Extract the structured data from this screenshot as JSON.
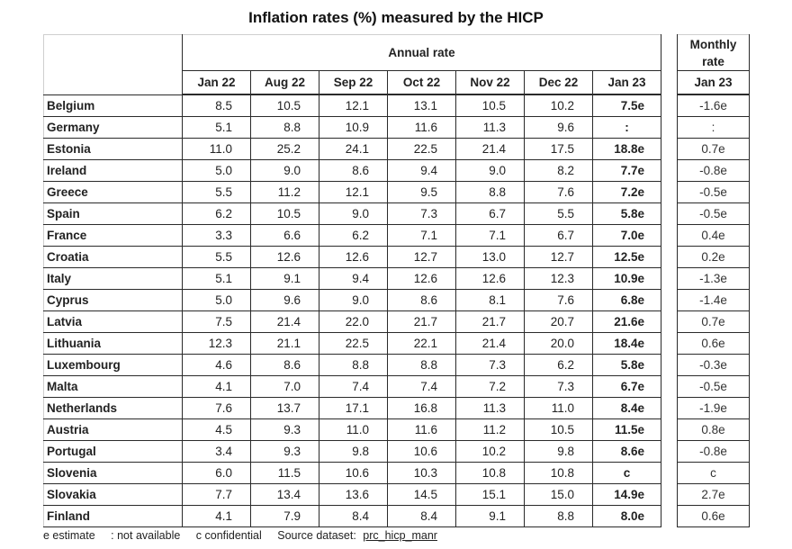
{
  "title": "Inflation rates (%) measured by the HICP",
  "headers": {
    "annual_rate": "Annual rate",
    "monthly_rate": "Monthly rate",
    "annual_months": [
      "Jan 22",
      "Aug 22",
      "Sep 22",
      "Oct 22",
      "Nov 22",
      "Dec 22",
      "Jan 23"
    ],
    "monthly_month": "Jan 23"
  },
  "rows": [
    {
      "country": "Belgium",
      "annual": [
        "8.5",
        "10.5",
        "12.1",
        "13.1",
        "10.5",
        "10.2",
        "7.5e"
      ],
      "monthly": "-1.6e"
    },
    {
      "country": "Germany",
      "annual": [
        "5.1",
        "8.8",
        "10.9",
        "11.6",
        "11.3",
        "9.6",
        ":"
      ],
      "monthly": ":"
    },
    {
      "country": "Estonia",
      "annual": [
        "11.0",
        "25.2",
        "24.1",
        "22.5",
        "21.4",
        "17.5",
        "18.8e"
      ],
      "monthly": "0.7e"
    },
    {
      "country": "Ireland",
      "annual": [
        "5.0",
        "9.0",
        "8.6",
        "9.4",
        "9.0",
        "8.2",
        "7.7e"
      ],
      "monthly": "-0.8e"
    },
    {
      "country": "Greece",
      "annual": [
        "5.5",
        "11.2",
        "12.1",
        "9.5",
        "8.8",
        "7.6",
        "7.2e"
      ],
      "monthly": "-0.5e"
    },
    {
      "country": "Spain",
      "annual": [
        "6.2",
        "10.5",
        "9.0",
        "7.3",
        "6.7",
        "5.5",
        "5.8e"
      ],
      "monthly": "-0.5e"
    },
    {
      "country": "France",
      "annual": [
        "3.3",
        "6.6",
        "6.2",
        "7.1",
        "7.1",
        "6.7",
        "7.0e"
      ],
      "monthly": "0.4e"
    },
    {
      "country": "Croatia",
      "annual": [
        "5.5",
        "12.6",
        "12.6",
        "12.7",
        "13.0",
        "12.7",
        "12.5e"
      ],
      "monthly": "0.2e"
    },
    {
      "country": "Italy",
      "annual": [
        "5.1",
        "9.1",
        "9.4",
        "12.6",
        "12.6",
        "12.3",
        "10.9e"
      ],
      "monthly": "-1.3e"
    },
    {
      "country": "Cyprus",
      "annual": [
        "5.0",
        "9.6",
        "9.0",
        "8.6",
        "8.1",
        "7.6",
        "6.8e"
      ],
      "monthly": "-1.4e"
    },
    {
      "country": "Latvia",
      "annual": [
        "7.5",
        "21.4",
        "22.0",
        "21.7",
        "21.7",
        "20.7",
        "21.6e"
      ],
      "monthly": "0.7e"
    },
    {
      "country": "Lithuania",
      "annual": [
        "12.3",
        "21.1",
        "22.5",
        "22.1",
        "21.4",
        "20.0",
        "18.4e"
      ],
      "monthly": "0.6e"
    },
    {
      "country": "Luxembourg",
      "annual": [
        "4.6",
        "8.6",
        "8.8",
        "8.8",
        "7.3",
        "6.2",
        "5.8e"
      ],
      "monthly": "-0.3e"
    },
    {
      "country": "Malta",
      "annual": [
        "4.1",
        "7.0",
        "7.4",
        "7.4",
        "7.2",
        "7.3",
        "6.7e"
      ],
      "monthly": "-0.5e"
    },
    {
      "country": "Netherlands",
      "annual": [
        "7.6",
        "13.7",
        "17.1",
        "16.8",
        "11.3",
        "11.0",
        "8.4e"
      ],
      "monthly": "-1.9e"
    },
    {
      "country": "Austria",
      "annual": [
        "4.5",
        "9.3",
        "11.0",
        "11.6",
        "11.2",
        "10.5",
        "11.5e"
      ],
      "monthly": "0.8e"
    },
    {
      "country": "Portugal",
      "annual": [
        "3.4",
        "9.3",
        "9.8",
        "10.6",
        "10.2",
        "9.8",
        "8.6e"
      ],
      "monthly": "-0.8e"
    },
    {
      "country": "Slovenia",
      "annual": [
        "6.0",
        "11.5",
        "10.6",
        "10.3",
        "10.8",
        "10.8",
        "c"
      ],
      "monthly": "c"
    },
    {
      "country": "Slovakia",
      "annual": [
        "7.7",
        "13.4",
        "13.6",
        "14.5",
        "15.1",
        "15.0",
        "14.9e"
      ],
      "monthly": "2.7e"
    },
    {
      "country": "Finland",
      "annual": [
        "4.1",
        "7.9",
        "8.4",
        "8.4",
        "9.1",
        "8.8",
        "8.0e"
      ],
      "monthly": "0.6e"
    }
  ],
  "footer": {
    "estimate": "e estimate",
    "not_available": ": not available",
    "confidential": "c confidential",
    "source_label": "Source dataset:",
    "source_link": "prc_hicp_manr"
  }
}
